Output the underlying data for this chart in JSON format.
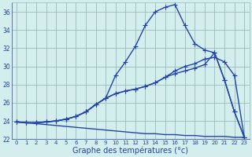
{
  "xlabel": "Graphe des températures (°c)",
  "hours": [
    0,
    1,
    2,
    3,
    4,
    5,
    6,
    7,
    8,
    9,
    10,
    11,
    12,
    13,
    14,
    15,
    16,
    17,
    18,
    19,
    20,
    21,
    22,
    23
  ],
  "line1": [
    23.9,
    23.8,
    23.8,
    23.9,
    24.0,
    24.2,
    24.5,
    25.0,
    25.8,
    26.5,
    29.0,
    30.5,
    32.2,
    34.5,
    36.0,
    36.5,
    36.8,
    34.5,
    32.5,
    31.8,
    31.5,
    28.5,
    25.0,
    22.2
  ],
  "line2": [
    23.9,
    23.8,
    23.8,
    23.9,
    24.0,
    24.2,
    24.5,
    25.0,
    25.8,
    26.5,
    27.0,
    27.3,
    27.5,
    27.8,
    28.2,
    28.8,
    29.5,
    30.0,
    30.3,
    30.8,
    31.0,
    30.5,
    29.0,
    22.2
  ],
  "line3": [
    23.9,
    23.8,
    23.8,
    23.9,
    24.0,
    24.2,
    24.5,
    25.0,
    25.8,
    26.5,
    27.0,
    27.3,
    27.5,
    27.8,
    28.2,
    28.8,
    29.2,
    29.5,
    29.8,
    30.2,
    31.5,
    28.5,
    25.0,
    22.2
  ],
  "line4": [
    23.9,
    23.8,
    23.7,
    23.6,
    23.5,
    23.4,
    23.3,
    23.2,
    23.1,
    23.0,
    22.9,
    22.8,
    22.7,
    22.6,
    22.6,
    22.5,
    22.5,
    22.4,
    22.4,
    22.3,
    22.3,
    22.3,
    22.2,
    22.2
  ],
  "line_color": "#2244aa",
  "bg_color": "#d4eeee",
  "grid_color": "#99bbbb",
  "ylim": [
    22,
    37
  ],
  "yticks": [
    22,
    24,
    26,
    28,
    30,
    32,
    34,
    36
  ],
  "marker": "+",
  "markersize": 4,
  "linewidth": 1.0
}
